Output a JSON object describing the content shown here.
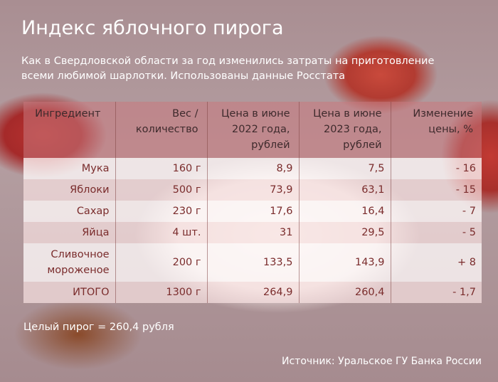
{
  "header": {
    "title": "Индекс яблочного пирога",
    "subtitle": "Как в Свердловской области за год изменились затраты на приготовление всеми любимой шарлотки. Использованы данные Росстата"
  },
  "table": {
    "columns": [
      "Ингредиент",
      "Вес / количество",
      "Цена в июне 2022 года, рублей",
      "Цена в июне 2023 года, рублей",
      "Изменение цены, %"
    ],
    "rows": [
      [
        "Мука",
        "160 г",
        "8,9",
        "7,5",
        "- 16"
      ],
      [
        "Яблоки",
        "500 г",
        "73,9",
        "63,1",
        "- 15"
      ],
      [
        "Сахар",
        "230 г",
        "17,6",
        "16,4",
        "- 7"
      ],
      [
        "Яйца",
        "4 шт.",
        "31",
        "29,5",
        "- 5"
      ],
      [
        "Сливочное мороженое",
        "200 г",
        "133,5",
        "143,9",
        "+ 8"
      ],
      [
        "ИТОГО",
        "1300 г",
        "264,9",
        "260,4",
        "- 1,7"
      ]
    ]
  },
  "footer": {
    "note": "Целый пирог = 260,4 рубля",
    "source": "Источник: Уральское ГУ Банка России"
  }
}
